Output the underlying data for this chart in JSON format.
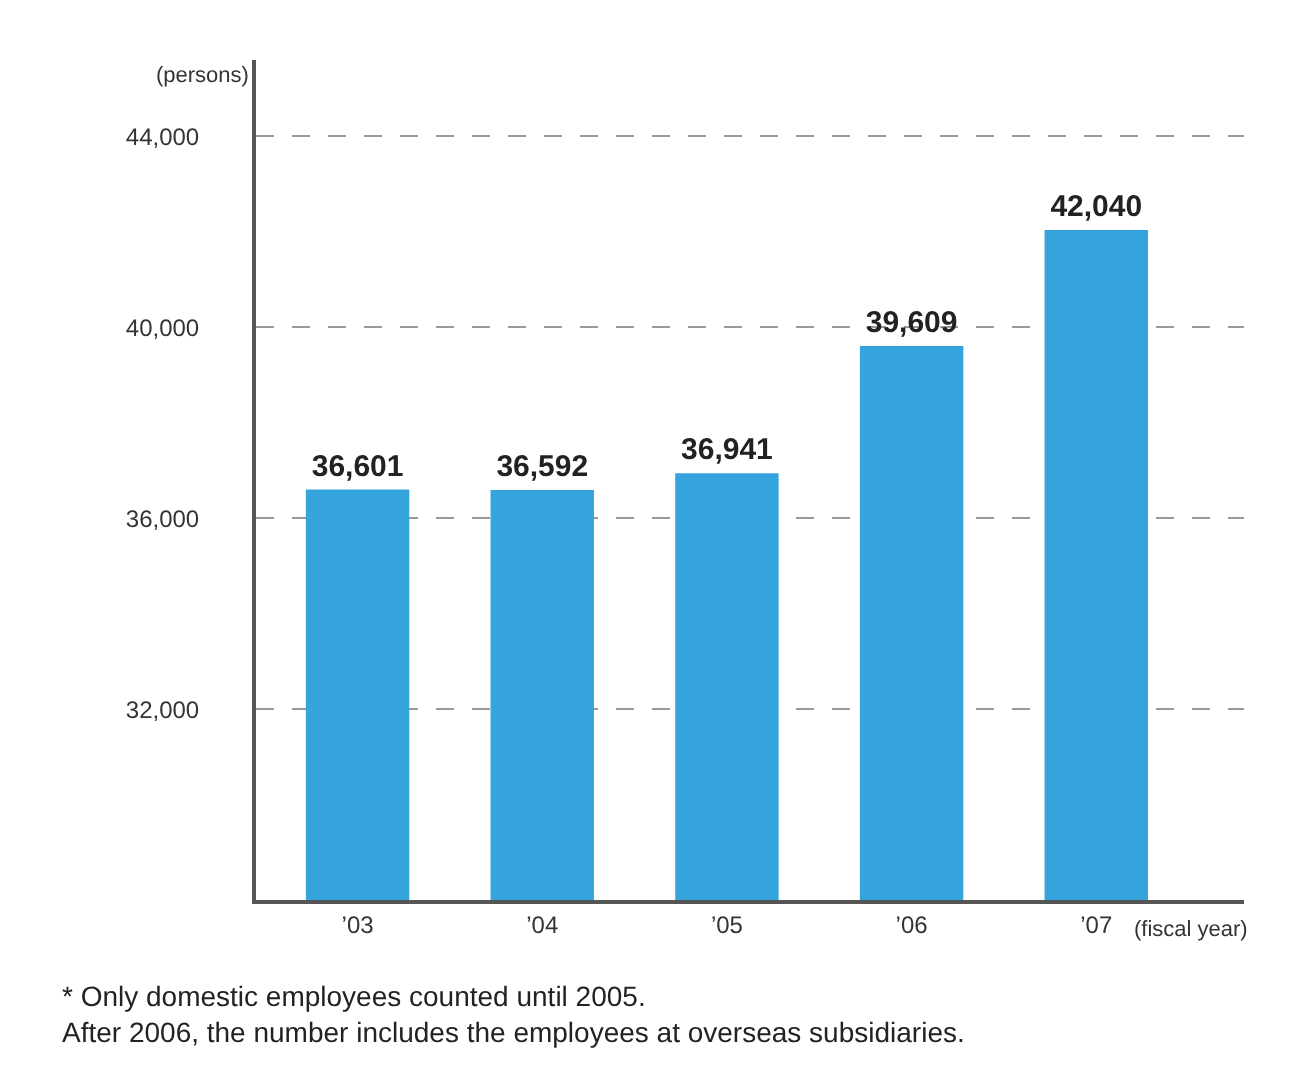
{
  "chart_data": {
    "type": "bar",
    "ylabel": "(persons)",
    "xlabel": "(fiscal year)",
    "categories": [
      "’03",
      "’04",
      "’05",
      "’06",
      "’07"
    ],
    "values": [
      36601,
      36592,
      36941,
      39609,
      42040
    ],
    "value_labels": [
      "36,601",
      "36,592",
      "36,941",
      "39,609",
      "42,040"
    ],
    "color": "#35a4dc",
    "ylim": [
      28000,
      45600
    ],
    "yticks": [
      {
        "value": 32000,
        "label": "32,000"
      },
      {
        "value": 36000,
        "label": "36,000"
      },
      {
        "value": 40000,
        "label": "40,000"
      },
      {
        "value": 44000,
        "label": "44,000"
      }
    ],
    "grid": "y",
    "line_style": "dashed",
    "legend": false,
    "annotations": [
      "* Only domestic employees counted until 2005.\nAfter 2006, the number includes the employees at overseas subsidiaries."
    ]
  }
}
